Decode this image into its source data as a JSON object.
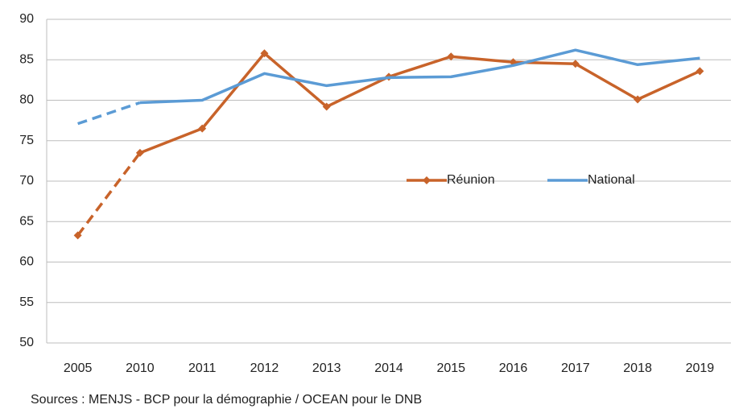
{
  "chart_data": {
    "type": "line",
    "categories": [
      "2005",
      "2010",
      "2011",
      "2012",
      "2013",
      "2014",
      "2015",
      "2016",
      "2017",
      "2018",
      "2019"
    ],
    "series": [
      {
        "name": "Réunion",
        "color": "#c8632a",
        "marker": "diamond",
        "values": [
          63.3,
          73.5,
          76.5,
          85.8,
          79.2,
          82.9,
          85.4,
          84.7,
          84.5,
          80.1,
          83.6
        ]
      },
      {
        "name": "National",
        "color": "#5b9bd5",
        "marker": "none",
        "values": [
          77.1,
          79.7,
          80.0,
          83.3,
          81.8,
          82.8,
          82.9,
          84.3,
          86.2,
          84.4,
          85.2
        ]
      }
    ],
    "dashed_segments": [
      0
    ],
    "ylim": [
      50,
      90
    ],
    "yticks": [
      50,
      55,
      60,
      65,
      70,
      75,
      80,
      85,
      90
    ],
    "grid": true,
    "legend_position": "center-right",
    "source": "Sources : MENJS - BCP pour la démographie / OCEAN pour le DNB"
  }
}
